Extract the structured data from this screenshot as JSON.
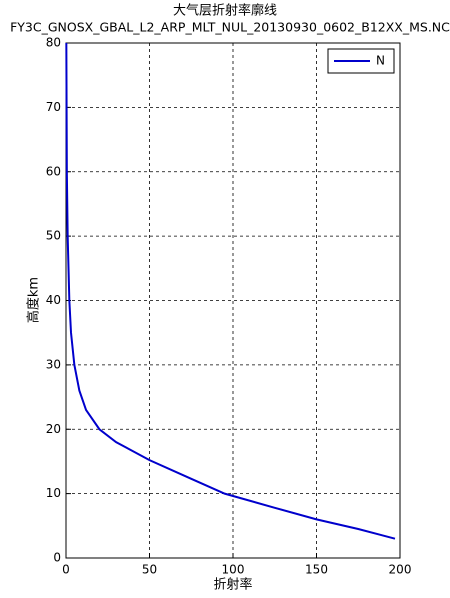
{
  "chart_data": {
    "type": "line",
    "title": "大气层折射率廓线",
    "subtitle": "FY3C_GNOSX_GBAL_L2_ARP_MLT_NUL_20130930_0602_B12XX_MS.NC",
    "x_label": "折射率",
    "y_label": "高度km",
    "x": [
      0.2,
      0.5,
      1,
      1.5,
      2,
      3,
      5,
      8,
      12,
      20,
      30,
      50,
      75,
      95,
      125,
      150,
      175,
      197
    ],
    "series": [
      {
        "name": "N",
        "color": "#0000cc",
        "values": [
          80,
          60,
          50,
          45,
          40,
          35,
          30,
          26,
          23,
          20,
          18,
          15.2,
          12.3,
          10,
          7.8,
          6,
          4.5,
          3
        ]
      }
    ],
    "xlim": [
      0,
      200
    ],
    "xticks": [
      0,
      50,
      100,
      150,
      200
    ],
    "ylim": [
      0,
      80
    ],
    "yticks": [
      0,
      10,
      20,
      30,
      40,
      50,
      60,
      70,
      80
    ],
    "grid": true,
    "legend_position": "northeast"
  }
}
